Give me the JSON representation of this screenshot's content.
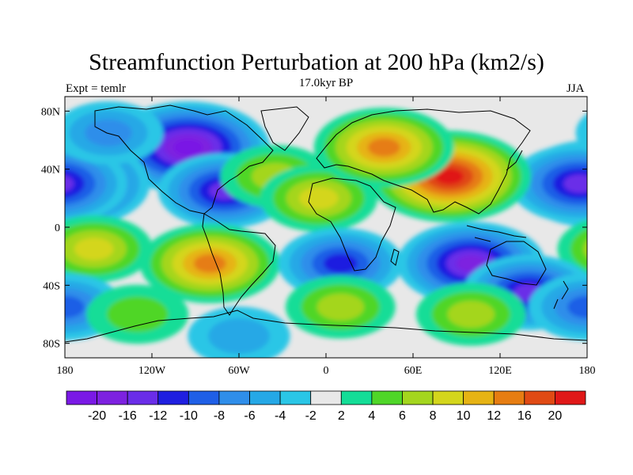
{
  "title": "Streamfunction Perturbation at 200 hPa (km2/s)",
  "subtitle_left": "Expt = temlr",
  "subtitle_center": "17.0kyr BP",
  "subtitle_right": "JJA",
  "lat_ticks": [
    {
      "value": 80,
      "label": "80N"
    },
    {
      "value": 40,
      "label": "40N"
    },
    {
      "value": 0,
      "label": "0"
    },
    {
      "value": -40,
      "label": "40S"
    },
    {
      "value": -80,
      "label": "80S"
    }
  ],
  "lon_ticks": [
    {
      "value": -180,
      "label": "180"
    },
    {
      "value": -120,
      "label": "120W"
    },
    {
      "value": -60,
      "label": "60W"
    },
    {
      "value": 0,
      "label": "0"
    },
    {
      "value": 60,
      "label": "60E"
    },
    {
      "value": 120,
      "label": "120E"
    },
    {
      "value": 180,
      "label": "180"
    }
  ],
  "colorbar": {
    "colors": [
      "#7a19e5",
      "#7d21e0",
      "#6a2de8",
      "#1f1fe0",
      "#1f5fe6",
      "#2f8eea",
      "#25a8e6",
      "#2ac6e6",
      "#e8e8e8",
      "#14dd97",
      "#4fd628",
      "#a4d61e",
      "#d4d61c",
      "#e6b314",
      "#e67d12",
      "#e04a14",
      "#e01818"
    ],
    "labels": [
      "-20",
      "-16",
      "-12",
      "-10",
      "-8",
      "-6",
      "-4",
      "-2",
      "2",
      "4",
      "6",
      "8",
      "10",
      "12",
      "16",
      "20"
    ]
  },
  "chart_data": {
    "type": "heatmap",
    "title": "Streamfunction Perturbation at 200 hPa (km2/s)",
    "subtitle": "17.0kyr BP",
    "experiment": "Expt = temlr",
    "season": "JJA",
    "xlim": [
      -180,
      180
    ],
    "ylim": [
      -90,
      90
    ],
    "contour_levels": [
      -20,
      -16,
      -12,
      -10,
      -8,
      -6,
      -4,
      -2,
      2,
      4,
      6,
      8,
      10,
      12,
      16,
      20
    ],
    "features": [
      {
        "lon": -95,
        "lat": 55,
        "value": -20
      },
      {
        "lon": -70,
        "lat": 25,
        "value": -12
      },
      {
        "lon": -175,
        "lat": 30,
        "value": -18
      },
      {
        "lon": 175,
        "lat": 30,
        "value": -14
      },
      {
        "lon": -150,
        "lat": 65,
        "value": -6
      },
      {
        "lon": -35,
        "lat": 35,
        "value": 6
      },
      {
        "lon": -5,
        "lat": 20,
        "value": 8
      },
      {
        "lon": 85,
        "lat": 35,
        "value": 20
      },
      {
        "lon": 40,
        "lat": 55,
        "value": 14
      },
      {
        "lon": -80,
        "lat": -25,
        "value": 14
      },
      {
        "lon": -160,
        "lat": -15,
        "value": 8
      },
      {
        "lon": 100,
        "lat": -25,
        "value": -16
      },
      {
        "lon": 10,
        "lat": -25,
        "value": -10
      },
      {
        "lon": 140,
        "lat": -45,
        "value": -12
      },
      {
        "lon": -180,
        "lat": -55,
        "value": -8
      },
      {
        "lon": 10,
        "lat": -55,
        "value": 6
      },
      {
        "lon": 100,
        "lat": -60,
        "value": 6
      },
      {
        "lon": -60,
        "lat": -75,
        "value": -4
      },
      {
        "lon": -130,
        "lat": -60,
        "value": 4
      }
    ]
  }
}
